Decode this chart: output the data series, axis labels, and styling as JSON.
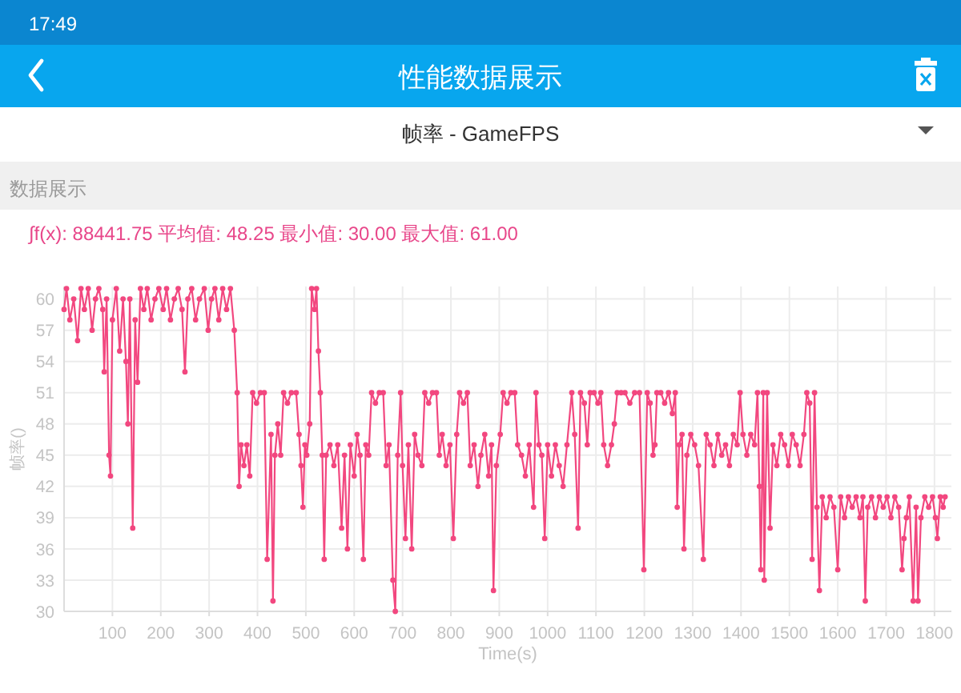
{
  "chart_data": {
    "type": "line",
    "title": "性能数据展示",
    "subtitle": "帧率 - GameFPS",
    "xlabel": "Time(s)",
    "ylabel": "帧率()",
    "annotations": [
      "17:49",
      "数据展示",
      "∫f(x): 88441.75 平均值: 48.25 最小值: 30.00 最大值: 61.00"
    ],
    "x": [
      0,
      5,
      12,
      20,
      28,
      35,
      42,
      50,
      58,
      65,
      72,
      80,
      83,
      88,
      93,
      96,
      100,
      108,
      115,
      122,
      128,
      132,
      136,
      142,
      147,
      152,
      158,
      165,
      172,
      180,
      188,
      196,
      205,
      212,
      220,
      228,
      236,
      244,
      250,
      256,
      264,
      272,
      280,
      290,
      298,
      305,
      312,
      320,
      328,
      336,
      344,
      352,
      358,
      362,
      366,
      372,
      378,
      384,
      390,
      398,
      406,
      414,
      420,
      428,
      432,
      436,
      442,
      448,
      454,
      462,
      470,
      480,
      486,
      490,
      494,
      498,
      502,
      508,
      512,
      518,
      522,
      526,
      530,
      534,
      538,
      542,
      550,
      558,
      566,
      574,
      580,
      586,
      592,
      600,
      606,
      612,
      619,
      624,
      630,
      636,
      644,
      652,
      660,
      666,
      672,
      680,
      685,
      690,
      696,
      700,
      706,
      712,
      719,
      725,
      732,
      740,
      746,
      754,
      762,
      770,
      776,
      782,
      790,
      798,
      805,
      812,
      818,
      826,
      834,
      840,
      848,
      856,
      862,
      870,
      878,
      884,
      888,
      894,
      902,
      908,
      916,
      924,
      932,
      938,
      946,
      954,
      962,
      971,
      976,
      982,
      988,
      994,
      1000,
      1008,
      1016,
      1024,
      1032,
      1040,
      1050,
      1056,
      1063,
      1068,
      1076,
      1082,
      1088,
      1096,
      1104,
      1110,
      1116,
      1124,
      1132,
      1138,
      1144,
      1152,
      1160,
      1170,
      1180,
      1190,
      1199,
      1206,
      1212,
      1218,
      1222,
      1226,
      1234,
      1242,
      1250,
      1258,
      1264,
      1268,
      1272,
      1278,
      1282,
      1288,
      1296,
      1304,
      1312,
      1322,
      1328,
      1336,
      1344,
      1352,
      1360,
      1368,
      1376,
      1384,
      1392,
      1398,
      1404,
      1412,
      1420,
      1428,
      1434,
      1438,
      1441,
      1446,
      1448,
      1454,
      1460,
      1466,
      1474,
      1482,
      1490,
      1498,
      1506,
      1514,
      1522,
      1530,
      1536,
      1542,
      1547,
      1552,
      1557,
      1562,
      1568,
      1576,
      1584,
      1592,
      1600,
      1606,
      1614,
      1622,
      1630,
      1638,
      1646,
      1652,
      1657,
      1662,
      1670,
      1678,
      1686,
      1694,
      1702,
      1710,
      1718,
      1726,
      1733,
      1737,
      1742,
      1748,
      1756,
      1762,
      1766,
      1772,
      1780,
      1788,
      1796,
      1802,
      1806,
      1812,
      1818,
      1822
    ],
    "series": [
      {
        "color": "#f2477f",
        "values": [
          59,
          61,
          58,
          60,
          56,
          61,
          59,
          61,
          57,
          60,
          61,
          59,
          53,
          60,
          45,
          43,
          58,
          61,
          55,
          60,
          54,
          48,
          60,
          38,
          58,
          52,
          61,
          59,
          61,
          58,
          60,
          61,
          59,
          61,
          58,
          60,
          61,
          59,
          53,
          60,
          61,
          58,
          60,
          61,
          57,
          60,
          61,
          58,
          61,
          59,
          61,
          57,
          51,
          42,
          46,
          44,
          46,
          43,
          51,
          50,
          51,
          51,
          35,
          47,
          31,
          45,
          48,
          45,
          51,
          50,
          51,
          51,
          47,
          44,
          40,
          46,
          45,
          48,
          61,
          59,
          61,
          55,
          51,
          45,
          35,
          45,
          46,
          44,
          46,
          38,
          45,
          36,
          46,
          43,
          47,
          45,
          35,
          46,
          45,
          51,
          50,
          51,
          51,
          44,
          46,
          33,
          30,
          45,
          51,
          44,
          37,
          46,
          36,
          47,
          45,
          44,
          51,
          50,
          51,
          51,
          45,
          47,
          44,
          46,
          37,
          47,
          51,
          50,
          51,
          44,
          46,
          42,
          45,
          47,
          43,
          46,
          32,
          44,
          47,
          51,
          50,
          51,
          51,
          46,
          45,
          43,
          46,
          40,
          51,
          46,
          45,
          37,
          46,
          43,
          46,
          44,
          42,
          46,
          51,
          47,
          38,
          51,
          50,
          46,
          51,
          51,
          50,
          51,
          46,
          44,
          46,
          48,
          51,
          51,
          51,
          50,
          51,
          51,
          34,
          51,
          50,
          45,
          46,
          51,
          51,
          50,
          51,
          49,
          51,
          40,
          46,
          47,
          36,
          45,
          47,
          46,
          44,
          35,
          47,
          46,
          44,
          47,
          45,
          46,
          44,
          47,
          46,
          51,
          47,
          45,
          47,
          46,
          51,
          42,
          34,
          51,
          33,
          51,
          38,
          46,
          44,
          47,
          46,
          44,
          47,
          46,
          44,
          47,
          51,
          50,
          35,
          51,
          40,
          32,
          41,
          39,
          41,
          40,
          34,
          41,
          39,
          41,
          40,
          41,
          39,
          41,
          31,
          40,
          41,
          39,
          41,
          40,
          41,
          39,
          41,
          40,
          34,
          37,
          39,
          41,
          31,
          40,
          31,
          39,
          41,
          40,
          41,
          39,
          37,
          41,
          40,
          41
        ]
      }
    ],
    "xlim": [
      0,
      1835
    ],
    "ylim": [
      30,
      61.2
    ],
    "xticks": [
      100,
      200,
      300,
      400,
      500,
      600,
      700,
      800,
      900,
      1000,
      1100,
      1200,
      1300,
      1400,
      1500,
      1600,
      1700,
      1800
    ],
    "yticks": [
      30,
      33,
      36,
      39,
      42,
      45,
      48,
      51,
      54,
      57,
      60
    ],
    "grid": true,
    "marker": "circle"
  }
}
